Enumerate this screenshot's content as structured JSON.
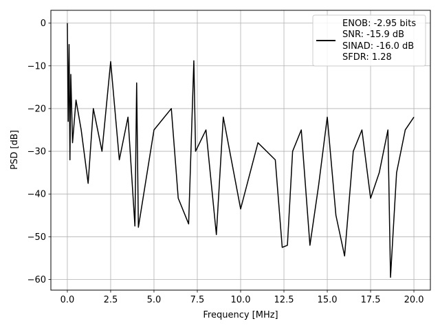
{
  "chart_data": {
    "type": "line",
    "title": "",
    "xlabel": "Frequency [MHz]",
    "ylabel": "PSD [dB]",
    "xlim": [
      -0.95,
      20.95
    ],
    "ylim": [
      -62.5,
      3.0
    ],
    "xticks": [
      0.0,
      2.5,
      5.0,
      7.5,
      10.0,
      12.5,
      15.0,
      17.5,
      20.0
    ],
    "xtick_labels": [
      "0.0",
      "2.5",
      "5.0",
      "7.5",
      "10.0",
      "12.5",
      "15.0",
      "17.5",
      "20.0"
    ],
    "yticks": [
      0,
      -10,
      -20,
      -30,
      -40,
      -50,
      -60
    ],
    "ytick_labels": [
      "0",
      "−10",
      "−20",
      "−30",
      "−40",
      "−50",
      "−60"
    ],
    "grid": true,
    "legend_position": "top-right",
    "line_color": "#000000",
    "series": [
      {
        "name": "",
        "legend_lines": [
          "ENOB: -2.95 bits",
          "SNR: -15.9 dB",
          "SINAD: -16.0 dB",
          "SFDR: 1.28"
        ],
        "x": [
          0.0,
          0.05,
          0.1,
          0.15,
          0.2,
          0.3,
          0.5,
          0.8,
          1.2,
          1.5,
          2.0,
          2.5,
          3.0,
          3.5,
          3.9,
          4.0,
          4.1,
          5.0,
          6.0,
          6.4,
          7.0,
          7.3,
          7.4,
          8.0,
          8.6,
          9.0,
          10.0,
          11.0,
          12.0,
          12.4,
          12.7,
          13.0,
          13.5,
          14.0,
          14.5,
          15.0,
          15.5,
          16.0,
          16.5,
          17.0,
          17.5,
          18.0,
          18.5,
          18.65,
          19.0,
          19.5,
          20.0
        ],
        "values": [
          0.0,
          -23.0,
          -5.0,
          -32.0,
          -12.0,
          -28.0,
          -18.0,
          -25.0,
          -37.5,
          -20.0,
          -30.0,
          -9.0,
          -32.0,
          -22.0,
          -47.5,
          -14.0,
          -47.8,
          -25.0,
          -20.0,
          -41.0,
          -47.0,
          -8.8,
          -30.0,
          -25.0,
          -49.5,
          -22.0,
          -43.5,
          -28.0,
          -32.0,
          -52.5,
          -52.0,
          -30.0,
          -25.0,
          -52.0,
          -38.0,
          -22.0,
          -45.0,
          -54.5,
          -30.0,
          -25.0,
          -41.0,
          -35.0,
          -25.0,
          -59.5,
          -35.0,
          -25.0,
          -22.0
        ]
      }
    ]
  }
}
